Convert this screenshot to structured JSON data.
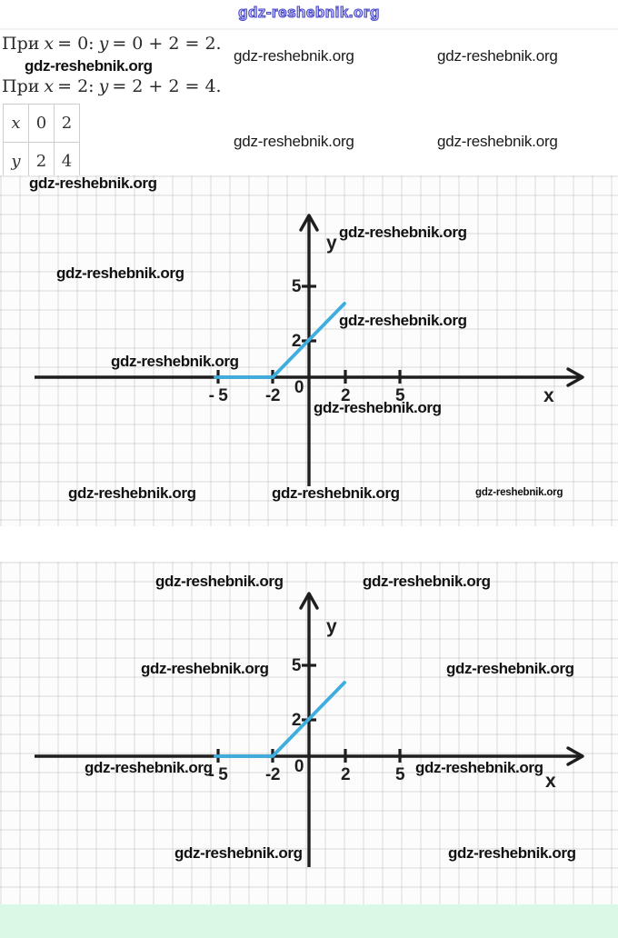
{
  "site": {
    "header": "gdz-reshebnik.org"
  },
  "watermark": {
    "text": "gdz-reshebnik.org"
  },
  "solution": {
    "line1": {
      "word": "При",
      "v1": "x",
      "m1": "= 0:",
      "v2": "y",
      "m2": "= 0 + 2 = 2."
    },
    "line2": {
      "word": "При",
      "v1": "x",
      "m1": "= 2:",
      "v2": "y",
      "m2": "= 2 + 2 = 4."
    }
  },
  "value_table": {
    "rows": [
      {
        "head": "x",
        "c1": "0",
        "c2": "2"
      },
      {
        "head": "y",
        "c1": "2",
        "c2": "4"
      }
    ]
  },
  "colors": {
    "accent_blue_line": "#3fadde",
    "axis": "#1e1e1e",
    "footer_green": "#d9f8e6",
    "header_blue": "#4646cc"
  },
  "chart_data": [
    {
      "type": "line",
      "title": "",
      "xlabel": "x",
      "ylabel": "y",
      "origin_label": "0",
      "grid": true,
      "axis_color": "#1e1e1e",
      "xlim": [
        -15,
        15
      ],
      "ylim": [
        -9.5,
        9
      ],
      "x_ticks": [
        {
          "v": -5,
          "label": "- 5"
        },
        {
          "v": -2,
          "label": "-2"
        },
        {
          "v": 2,
          "label": "2"
        },
        {
          "v": 5,
          "label": "5"
        }
      ],
      "y_ticks": [
        {
          "v": 2,
          "label": "2"
        },
        {
          "v": 5,
          "label": "5"
        }
      ],
      "series": [
        {
          "name": "y = 0 for x < -2; y = x + 2 for x >= -2",
          "color": "#3fadde",
          "points": [
            [
              -5.15,
              0
            ],
            [
              -2,
              0
            ],
            [
              1.95,
              4.05
            ]
          ]
        }
      ]
    },
    {
      "type": "line",
      "title": "",
      "xlabel": "x",
      "ylabel": "y",
      "origin_label": "0",
      "grid": true,
      "axis_color": "#1e1e1e",
      "xlim": [
        -15,
        15
      ],
      "ylim": [
        -7,
        9
      ],
      "x_ticks": [
        {
          "v": -5,
          "label": "- 5"
        },
        {
          "v": -2,
          "label": "-2"
        },
        {
          "v": 2,
          "label": "2"
        },
        {
          "v": 5,
          "label": "5"
        }
      ],
      "y_ticks": [
        {
          "v": 2,
          "label": "2"
        },
        {
          "v": 5,
          "label": "5"
        }
      ],
      "series": [
        {
          "name": "y = 0 for x < -2; y = x + 2 for x >= -2",
          "color": "#3fadde",
          "points": [
            [
              -5.15,
              0
            ],
            [
              -2,
              0
            ],
            [
              1.95,
              4.05
            ]
          ]
        }
      ]
    }
  ]
}
